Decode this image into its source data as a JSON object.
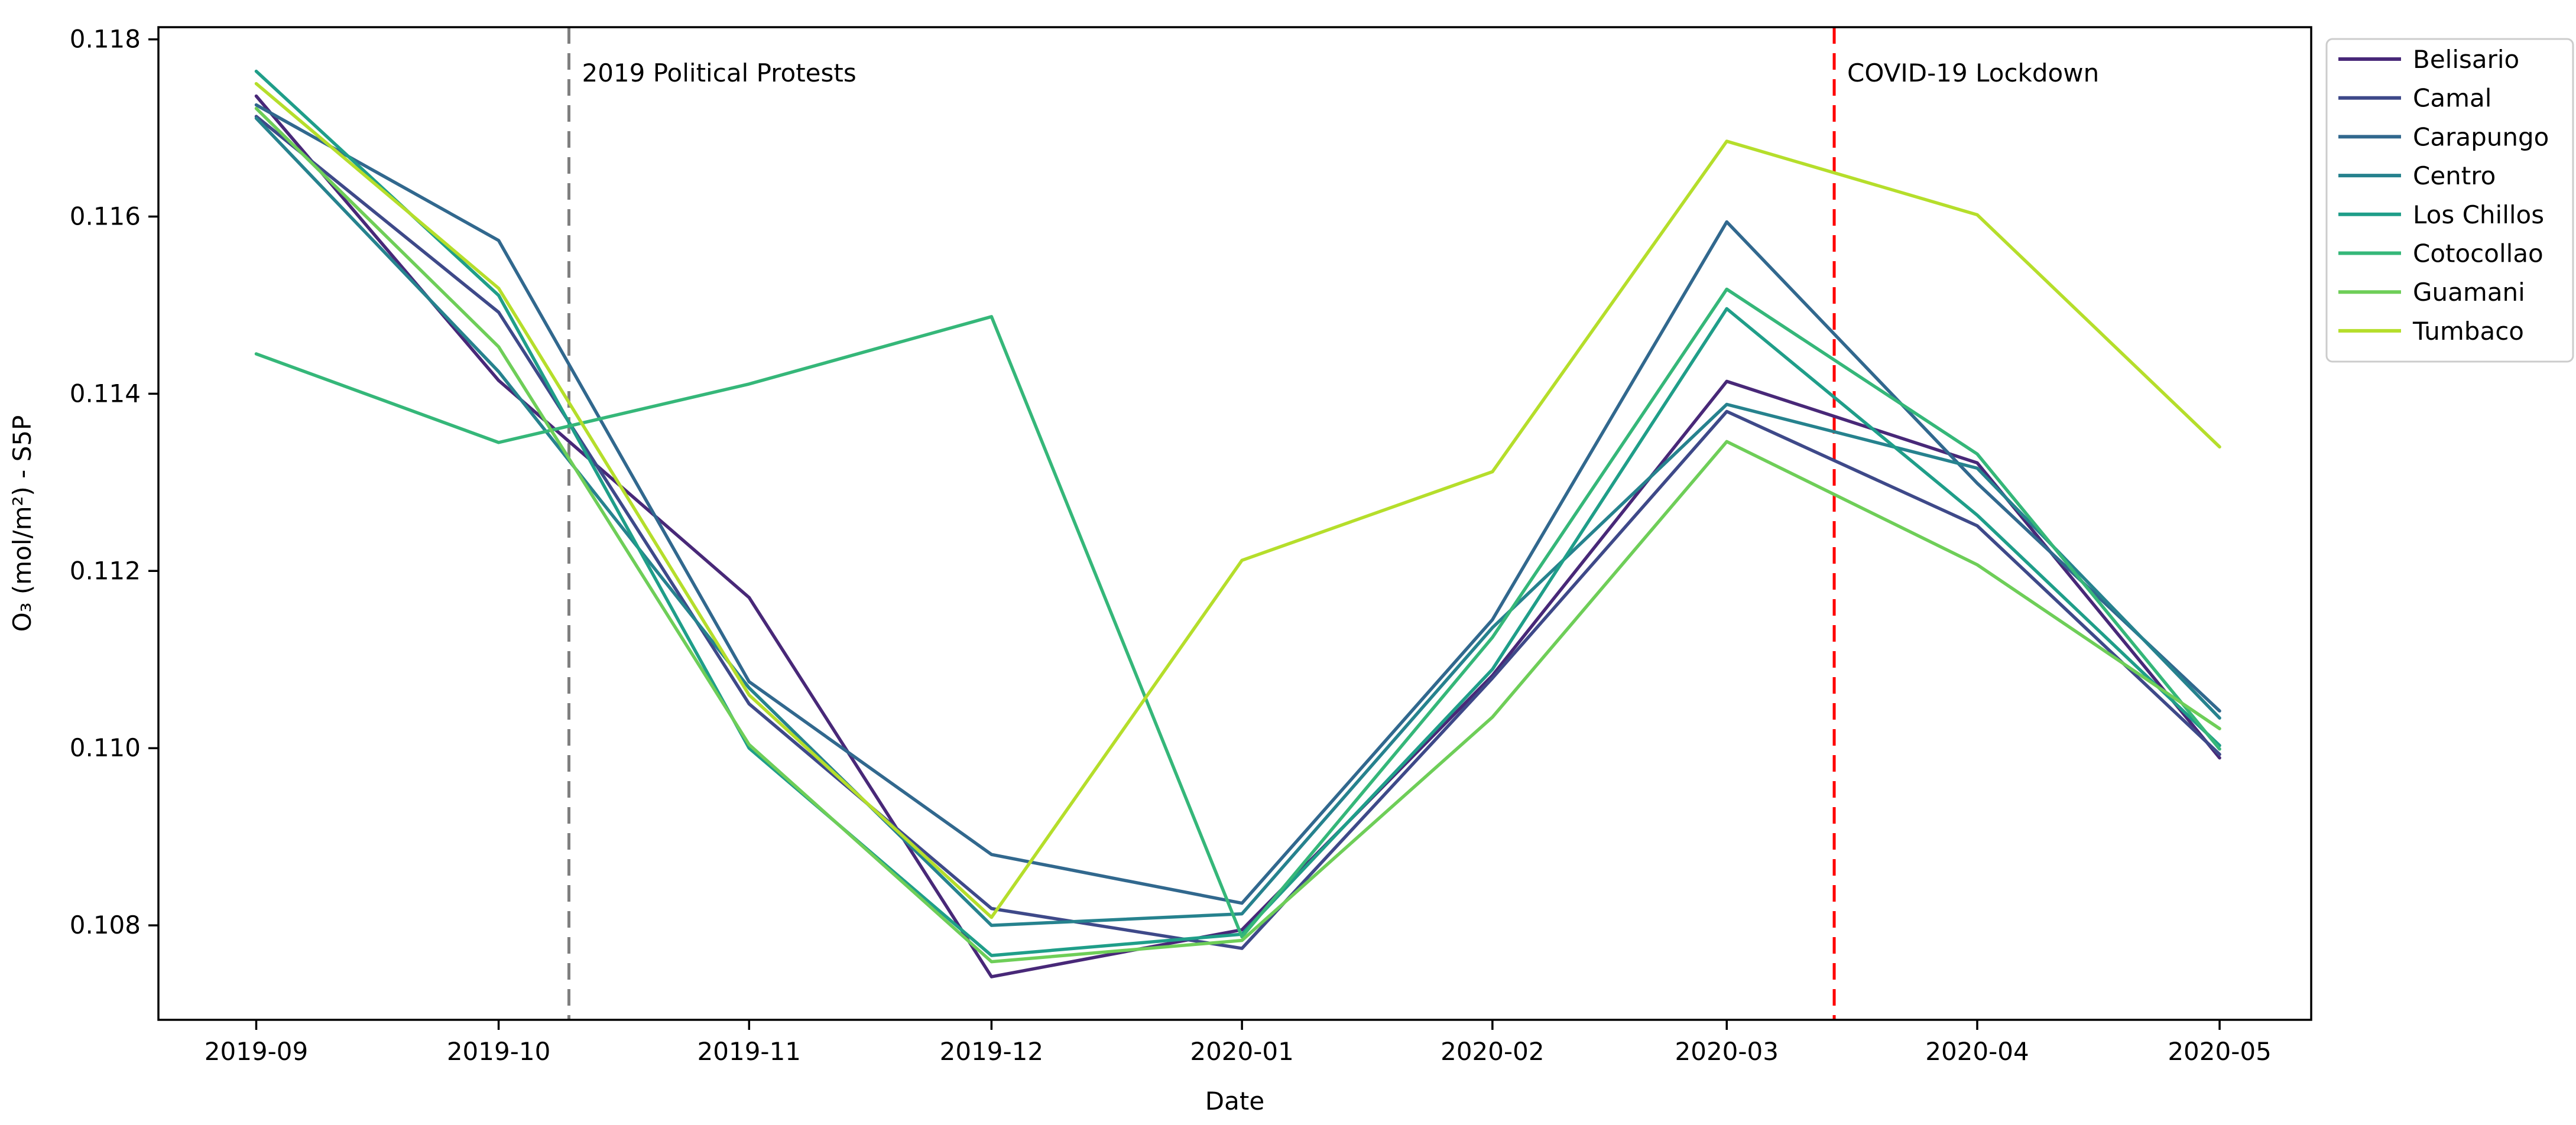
{
  "figure": {
    "background": "#ffffff",
    "xlabel": "Date",
    "ylabel": "O₃ (mol/m²) - S5P",
    "y_tick_labels": [
      "0.108",
      "0.110",
      "0.112",
      "0.114",
      "0.116",
      "0.118"
    ],
    "x_tick_labels": [
      "2019-09",
      "2019-10",
      "2019-11",
      "2019-12",
      "2020-01",
      "2020-02",
      "2020-03",
      "2020-04",
      "2020-05"
    ]
  },
  "annotations": [
    {
      "label": "2019 Political Protests",
      "line_color": "#7f7f7f",
      "text_color": "#000000",
      "x_days_from_start": 38.7
    },
    {
      "label": "COVID-19 Lockdown",
      "line_color": "#ff0000",
      "text_color": "#000000",
      "x_days_from_start": 195.3
    }
  ],
  "chart_data": {
    "type": "line",
    "title": "",
    "xlabel": "Date",
    "ylabel": "O₃ (mol/m²) - S5P",
    "categories": [
      "2019-09",
      "2019-10",
      "2019-11",
      "2019-12",
      "2020-01",
      "2020-02",
      "2020-03",
      "2020-04",
      "2020-05"
    ],
    "x_day_offsets": [
      0,
      30,
      61,
      91,
      122,
      153,
      182,
      213,
      243
    ],
    "ylim": [
      0.10693,
      0.11814
    ],
    "xlim_days": [
      -12.1,
      254.3
    ],
    "grid": false,
    "legend_position": "outside-upper-right",
    "series": [
      {
        "name": "Belisario",
        "color": "#482878",
        "values": [
          0.11736,
          0.11415,
          0.1117,
          0.10742,
          0.10795,
          0.11082,
          0.11414,
          0.11322,
          0.10989
        ]
      },
      {
        "name": "Camal",
        "color": "#3e4989",
        "values": [
          0.11713,
          0.11492,
          0.1105,
          0.10819,
          0.10774,
          0.11079,
          0.1138,
          0.11251,
          0.10993
        ]
      },
      {
        "name": "Carapungo",
        "color": "#31688e",
        "values": [
          0.11726,
          0.11573,
          0.11075,
          0.1088,
          0.10825,
          0.11145,
          0.11594,
          0.11299,
          0.11042
        ]
      },
      {
        "name": "Centro",
        "color": "#26828e",
        "values": [
          0.11711,
          0.11425,
          0.11068,
          0.108,
          0.10813,
          0.11136,
          0.11388,
          0.11316,
          0.11034
        ]
      },
      {
        "name": "Los Chillos",
        "color": "#1f9e89",
        "values": [
          0.11764,
          0.11511,
          0.11,
          0.10766,
          0.1079,
          0.11089,
          0.11496,
          0.11263,
          0.11003
        ]
      },
      {
        "name": "Cotocollao",
        "color": "#35b779",
        "values": [
          0.11445,
          0.11345,
          0.11411,
          0.11487,
          0.10787,
          0.11125,
          0.11518,
          0.11332,
          0.10999
        ]
      },
      {
        "name": "Guamani",
        "color": "#6ece58",
        "values": [
          0.11722,
          0.11453,
          0.11004,
          0.10759,
          0.10783,
          0.11035,
          0.11346,
          0.11207,
          0.11022
        ]
      },
      {
        "name": "Tumbaco",
        "color": "#b5de2b",
        "values": [
          0.1175,
          0.11519,
          0.1106,
          0.10809,
          0.11212,
          0.11312,
          0.11685,
          0.11602,
          0.1134
        ]
      }
    ]
  }
}
